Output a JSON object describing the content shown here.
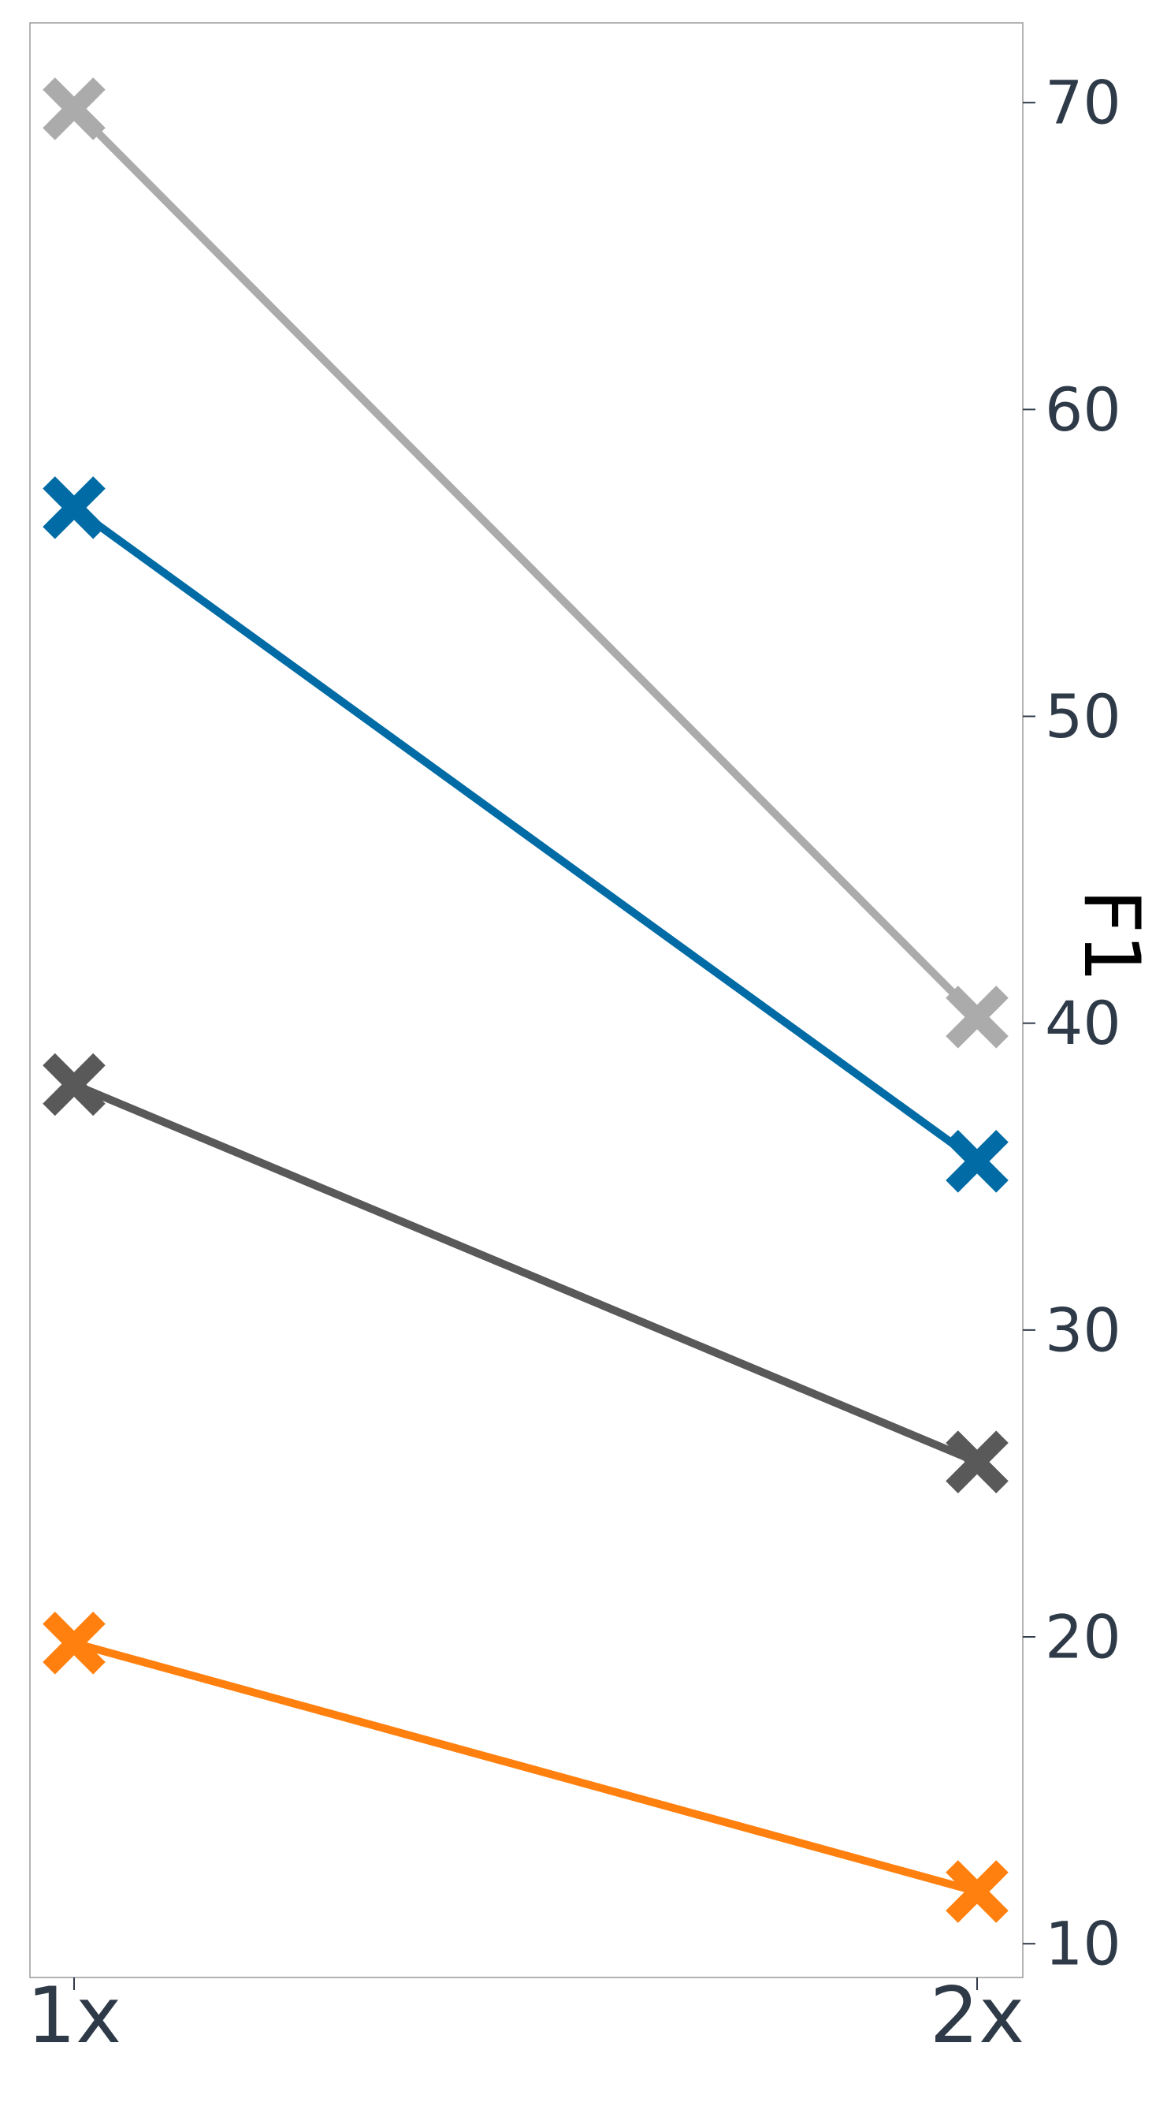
{
  "chart_data": {
    "type": "line",
    "title": "",
    "xlabel": "",
    "ylabel": "F1",
    "categories": [
      "1x",
      "2x"
    ],
    "yticks": [
      10,
      20,
      30,
      40,
      50,
      60,
      70
    ],
    "ylim": [
      8.9,
      72.6
    ],
    "yaxis_position": "right",
    "grid": false,
    "marker": "X",
    "series": [
      {
        "name": "light-gray",
        "color": "#ababab",
        "values": [
          69.8,
          40.2
        ]
      },
      {
        "name": "blue",
        "color": "#006ba4",
        "values": [
          56.8,
          35.5
        ]
      },
      {
        "name": "dark-gray",
        "color": "#595959",
        "values": [
          38.0,
          25.7
        ]
      },
      {
        "name": "orange",
        "color": "#ff800e",
        "values": [
          19.8,
          11.7
        ]
      }
    ]
  }
}
